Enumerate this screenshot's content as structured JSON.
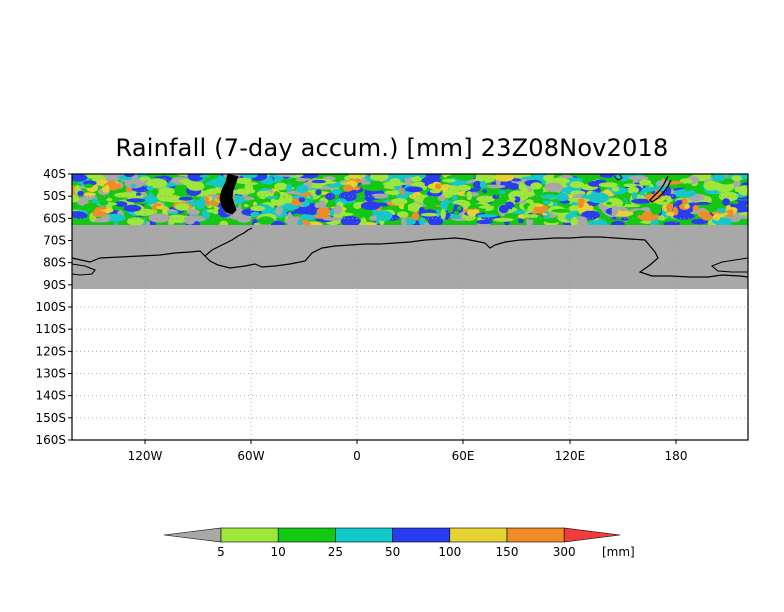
{
  "title": "Rainfall (7-day accum.) [mm] 23Z08Nov2018",
  "map": {
    "latitude_labels": [
      "40S",
      "50S",
      "60S",
      "70S",
      "80S",
      "90S",
      "100S",
      "110S",
      "120S",
      "130S",
      "140S",
      "150S",
      "160S"
    ],
    "longitude_labels": [
      "120W",
      "60W",
      "0",
      "60E",
      "120E",
      "180"
    ],
    "data_region": "40S to 60S (rainfall shading)",
    "no_data_region": "60S to 90S (Antarctica, grey)",
    "colors": {
      "no_data": "#a8a8a8",
      "land_outline": "#000000",
      "grid": "#9a9a9a"
    }
  },
  "colorbar": {
    "unit_label": "[mm]",
    "levels": [
      "5",
      "10",
      "25",
      "50",
      "100",
      "150",
      "300"
    ],
    "colors": [
      "#a8a8a8",
      "#9ee63c",
      "#12c812",
      "#12c8c8",
      "#2a3cf0",
      "#e6d232",
      "#f08c28",
      "#f03c3c"
    ],
    "color_names": [
      "<5 grey",
      "5-10 light green",
      "10-25 green",
      "25-50 cyan",
      "50-100 blue",
      "100-150 yellow",
      "150-300 orange",
      ">300 red"
    ]
  }
}
